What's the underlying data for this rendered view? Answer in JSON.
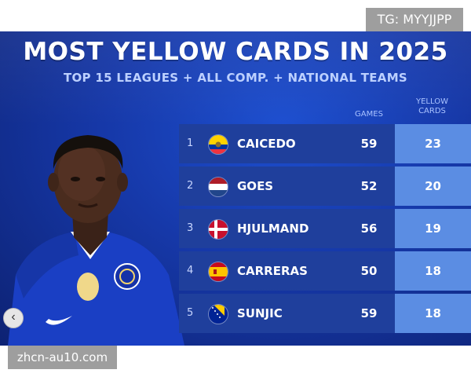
{
  "header": {
    "title": "MOST YELLOW CARDS IN 2025",
    "subtitle": "TOP 15 LEAGUES + ALL COMP. + NATIONAL TEAMS"
  },
  "table": {
    "col_games": "GAMES",
    "col_cards_line1": "YELLOW",
    "col_cards_line2": "CARDS",
    "rows": [
      {
        "rank": "1",
        "name": "CAICEDO",
        "games": "59",
        "cards": "23",
        "flag": "ecuador-flag-icon"
      },
      {
        "rank": "2",
        "name": "GOES",
        "games": "52",
        "cards": "20",
        "flag": "netherlands-flag-icon"
      },
      {
        "rank": "3",
        "name": "HJULMAND",
        "games": "56",
        "cards": "19",
        "flag": "denmark-flag-icon"
      },
      {
        "rank": "4",
        "name": "CARRERAS",
        "games": "50",
        "cards": "18",
        "flag": "spain-flag-icon"
      },
      {
        "rank": "5",
        "name": "SUNJIC",
        "games": "59",
        "cards": "18",
        "flag": "bosnia-flag-icon"
      }
    ]
  },
  "overlays": {
    "tg_badge": "TG: MYYJJPP",
    "watermark": "zhcn-au10.com",
    "nav_arrow_icon": "chevron-left-icon"
  },
  "colors": {
    "background": "#1638a8",
    "row": "#1f3f9c",
    "cards_cell": "#5b8de3",
    "badge": "#9e9e9e"
  }
}
